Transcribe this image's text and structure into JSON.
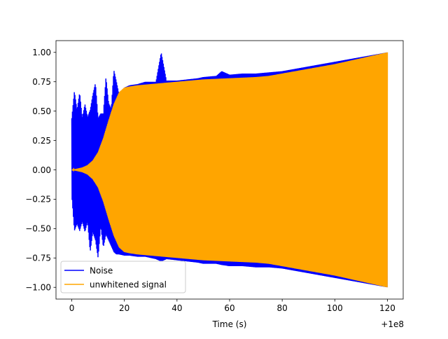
{
  "chart_data": {
    "type": "line",
    "title": "",
    "xlabel": "Time (s)",
    "ylabel": "",
    "x_offset_label": "+1e8",
    "xlim": [
      -6,
      126
    ],
    "ylim": [
      -1.1,
      1.1
    ],
    "x_ticks": [
      0,
      20,
      40,
      60,
      80,
      100,
      120
    ],
    "x_tick_labels": [
      "0",
      "20",
      "40",
      "60",
      "80",
      "100",
      "120"
    ],
    "y_ticks": [
      -1.0,
      -0.75,
      -0.5,
      -0.25,
      0.0,
      0.25,
      0.5,
      0.75,
      1.0
    ],
    "y_tick_labels": [
      "−1.00",
      "−0.75",
      "−0.50",
      "−0.25",
      "0.00",
      "0.25",
      "0.50",
      "0.75",
      "1.00"
    ],
    "grid": false,
    "legend_position": "lower-left",
    "series": [
      {
        "name": "Noise",
        "color": "#0000ff",
        "x": [
          0,
          1,
          2,
          3,
          4,
          5,
          6,
          7,
          8,
          9,
          10,
          11,
          12,
          13,
          14,
          15,
          16,
          17,
          18,
          20,
          22,
          25,
          28,
          30,
          32,
          34,
          36,
          40,
          44,
          48,
          50,
          55,
          57,
          60,
          65,
          70,
          75,
          80,
          85,
          90,
          95,
          100,
          105,
          110,
          115,
          120
        ],
        "upper": [
          0.44,
          0.67,
          0.51,
          0.66,
          0.44,
          0.56,
          0.45,
          0.51,
          0.64,
          0.74,
          0.44,
          0.48,
          0.48,
          0.79,
          0.57,
          0.52,
          0.85,
          0.75,
          0.64,
          0.7,
          0.72,
          0.73,
          0.75,
          0.75,
          0.75,
          1.0,
          0.76,
          0.76,
          0.77,
          0.78,
          0.79,
          0.8,
          0.84,
          0.81,
          0.82,
          0.82,
          0.83,
          0.84,
          0.86,
          0.88,
          0.9,
          0.92,
          0.94,
          0.96,
          0.98,
          1.0
        ],
        "lower": [
          -0.22,
          -0.52,
          -0.46,
          -0.52,
          -0.44,
          -0.53,
          -0.44,
          -0.7,
          -0.53,
          -0.6,
          -0.75,
          -0.48,
          -0.66,
          -0.55,
          -0.6,
          -0.65,
          -0.7,
          -0.72,
          -0.72,
          -0.73,
          -0.73,
          -0.74,
          -0.74,
          -0.75,
          -0.76,
          -0.78,
          -0.76,
          -0.77,
          -0.78,
          -0.79,
          -0.8,
          -0.8,
          -0.81,
          -0.82,
          -0.82,
          -0.83,
          -0.83,
          -0.84,
          -0.86,
          -0.88,
          -0.9,
          -0.92,
          -0.94,
          -0.96,
          -0.98,
          -1.0
        ]
      },
      {
        "name": "unwhitened signal",
        "color": "#ffa500",
        "x": [
          0,
          2,
          4,
          6,
          8,
          10,
          12,
          14,
          16,
          18,
          20,
          22,
          25,
          30,
          40,
          50,
          60,
          70,
          75,
          80,
          90,
          100,
          110,
          120
        ],
        "envelope": [
          0.0,
          0.01,
          0.02,
          0.04,
          0.08,
          0.15,
          0.27,
          0.42,
          0.56,
          0.66,
          0.7,
          0.71,
          0.72,
          0.73,
          0.75,
          0.77,
          0.78,
          0.79,
          0.8,
          0.82,
          0.86,
          0.9,
          0.95,
          1.0
        ]
      }
    ]
  }
}
